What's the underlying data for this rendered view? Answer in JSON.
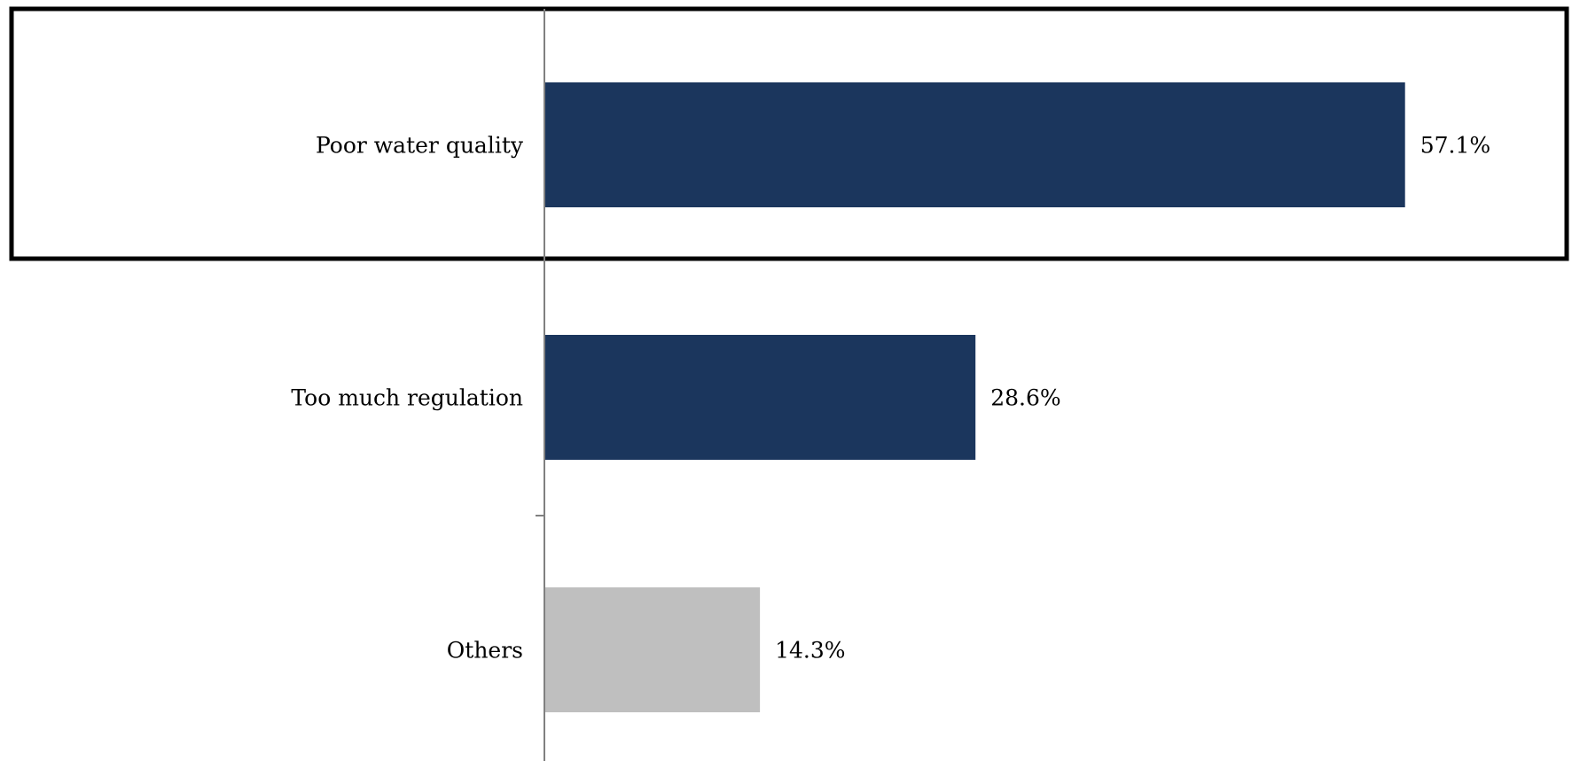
{
  "chart_data": {
    "type": "bar",
    "orientation": "horizontal",
    "categories": [
      "Poor water quality",
      "Too much regulation",
      "Others"
    ],
    "values": [
      57.1,
      28.6,
      14.3
    ],
    "value_labels": [
      "57.1%",
      "28.6%",
      "14.3%"
    ],
    "bar_colors": [
      "#1b365d",
      "#1b365d",
      "#bfbfbf"
    ],
    "highlighted_category": "Poor water quality",
    "xlim": [
      0,
      60
    ],
    "grid": false,
    "legend": "none"
  }
}
